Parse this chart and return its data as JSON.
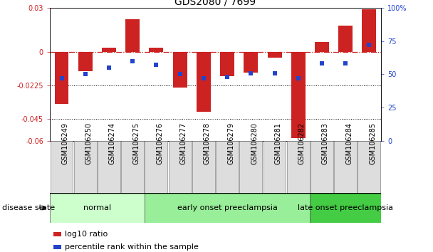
{
  "title": "GDS2080 / 7699",
  "samples": [
    "GSM106249",
    "GSM106250",
    "GSM106274",
    "GSM106275",
    "GSM106276",
    "GSM106277",
    "GSM106278",
    "GSM106279",
    "GSM106280",
    "GSM106281",
    "GSM106282",
    "GSM106283",
    "GSM106284",
    "GSM106285"
  ],
  "log10_ratio": [
    -0.035,
    -0.013,
    0.003,
    0.022,
    0.003,
    -0.024,
    -0.04,
    -0.016,
    -0.014,
    -0.004,
    -0.058,
    0.007,
    0.018,
    0.029
  ],
  "percentile_rank": [
    47,
    50,
    55,
    60,
    57,
    50,
    47,
    48,
    51,
    51,
    47,
    58,
    58,
    72
  ],
  "ylim_left": [
    -0.06,
    0.03
  ],
  "ylim_right": [
    0,
    100
  ],
  "yticks_left": [
    -0.06,
    -0.045,
    -0.0225,
    0,
    0.03
  ],
  "ytick_labels_left": [
    "-0.06",
    "-0.045",
    "-0.0225",
    "0",
    "0.03"
  ],
  "yticks_right": [
    0,
    25,
    50,
    75,
    100
  ],
  "ytick_labels_right": [
    "0",
    "25",
    "50",
    "75",
    "100%"
  ],
  "hlines": [
    -0.0225,
    -0.045
  ],
  "ref_line": 0.0,
  "bar_color": "#cc2222",
  "dot_color": "#2244cc",
  "bar_width": 0.6,
  "dot_size": 25,
  "group_labels": [
    "normal",
    "early onset preeclampsia",
    "late onset preeclampsia"
  ],
  "group_ranges": [
    [
      0,
      3
    ],
    [
      4,
      10
    ],
    [
      11,
      13
    ]
  ],
  "group_colors": [
    "#ccffcc",
    "#99ee99",
    "#44cc44"
  ],
  "disease_state_label": "disease state",
  "legend_bar_label": "log10 ratio",
  "legend_dot_label": "percentile rank within the sample",
  "title_fontsize": 10,
  "tick_fontsize": 7,
  "label_fontsize": 8
}
